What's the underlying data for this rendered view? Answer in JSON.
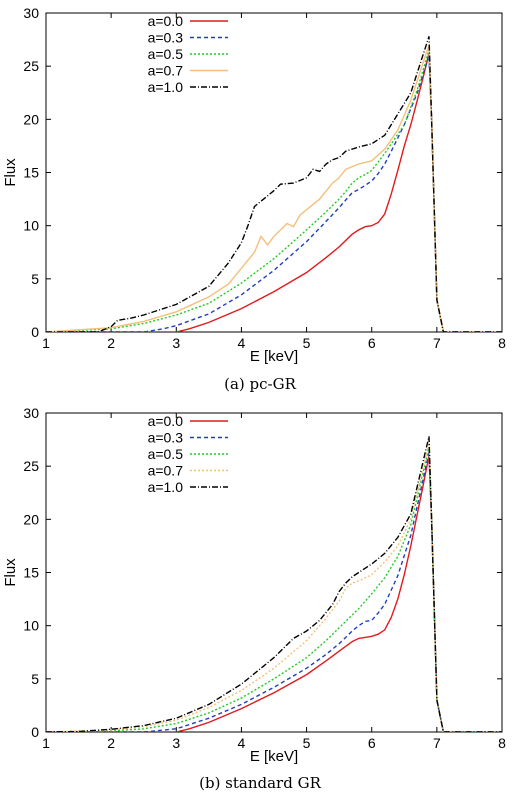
{
  "figure": {
    "captions": [
      "(a) pc-GR",
      "(b) standard GR"
    ]
  },
  "chart_data": [
    {
      "type": "line",
      "caption": "(a) pc-GR",
      "xlabel": "E [keV]",
      "ylabel": "Flux",
      "xlim": [
        1,
        8
      ],
      "ylim": [
        0,
        30
      ],
      "xticks": [
        1,
        2,
        3,
        4,
        5,
        6,
        7,
        8
      ],
      "yticks": [
        0,
        5,
        10,
        15,
        20,
        25,
        30
      ],
      "grid": false,
      "legend_position": "top-center",
      "series": [
        {
          "name": "a=0.0",
          "color": "#e31a1c",
          "dash": "solid",
          "x": [
            1.0,
            2.0,
            3.0,
            3.2,
            3.5,
            4.0,
            4.5,
            5.0,
            5.3,
            5.5,
            5.7,
            5.8,
            5.9,
            6.0,
            6.1,
            6.2,
            6.3,
            6.4,
            6.5,
            6.6,
            6.7,
            6.8,
            6.88,
            6.92,
            7.0,
            7.1,
            7.5,
            8.0
          ],
          "y": [
            0,
            0,
            0,
            0.3,
            0.9,
            2.2,
            3.8,
            5.6,
            7.0,
            8.0,
            9.2,
            9.6,
            9.9,
            10.0,
            10.3,
            11.1,
            13.0,
            15.2,
            17.5,
            19.5,
            21.8,
            24.2,
            26.2,
            20.0,
            3.0,
            0,
            0,
            0
          ]
        },
        {
          "name": "a=0.3",
          "color": "#1f3fbf",
          "dash": "4,3",
          "x": [
            1.0,
            2.5,
            2.8,
            3.0,
            3.5,
            4.0,
            4.5,
            5.0,
            5.3,
            5.5,
            5.6,
            5.7,
            5.8,
            5.9,
            6.0,
            6.1,
            6.2,
            6.3,
            6.5,
            6.7,
            6.88,
            6.92,
            7.0,
            7.1,
            7.5,
            8.0
          ],
          "y": [
            0,
            0,
            0.3,
            0.6,
            1.7,
            3.5,
            5.8,
            8.5,
            10.4,
            11.7,
            12.4,
            13.1,
            13.4,
            13.8,
            14.2,
            14.9,
            15.8,
            17.0,
            19.5,
            22.5,
            26.0,
            20.0,
            3.0,
            0,
            0,
            0
          ]
        },
        {
          "name": "a=0.5",
          "color": "#22cc22",
          "dash": "2,2",
          "x": [
            1.0,
            2.0,
            2.5,
            3.0,
            3.5,
            4.0,
            4.5,
            5.0,
            5.3,
            5.5,
            5.6,
            5.7,
            5.8,
            5.9,
            6.0,
            6.1,
            6.2,
            6.5,
            6.7,
            6.88,
            6.92,
            7.0,
            7.1,
            7.5,
            8.0
          ],
          "y": [
            0,
            0.3,
            0.8,
            1.6,
            2.7,
            4.6,
            6.9,
            9.6,
            11.3,
            12.5,
            13.2,
            14.0,
            14.5,
            14.8,
            15.2,
            16.0,
            16.8,
            19.5,
            22.8,
            26.5,
            20.0,
            3.0,
            0,
            0,
            0
          ]
        },
        {
          "name": "a=0.7",
          "color": "#f4c07a",
          "dash": "solid",
          "x": [
            1.0,
            2.0,
            2.5,
            3.0,
            3.5,
            3.8,
            4.0,
            4.2,
            4.3,
            4.4,
            4.5,
            4.7,
            4.8,
            4.9,
            5.0,
            5.2,
            5.4,
            5.5,
            5.6,
            5.8,
            6.0,
            6.2,
            6.4,
            6.6,
            6.88,
            6.92,
            7.0,
            7.1,
            7.5,
            8.0
          ],
          "y": [
            0,
            0.4,
            1.0,
            1.9,
            3.3,
            4.5,
            6.0,
            7.5,
            9.0,
            8.2,
            9.0,
            10.2,
            9.9,
            11.0,
            11.5,
            12.5,
            14.0,
            14.5,
            15.3,
            15.8,
            16.1,
            17.2,
            19.0,
            21.8,
            27.0,
            20.0,
            3.0,
            0,
            0,
            0
          ]
        },
        {
          "name": "a=1.0",
          "color": "#000000",
          "dash": "6,2,1,2",
          "x": [
            1.0,
            1.8,
            2.0,
            2.1,
            2.3,
            2.5,
            3.0,
            3.5,
            3.8,
            4.0,
            4.1,
            4.2,
            4.3,
            4.5,
            4.6,
            4.8,
            5.0,
            5.1,
            5.2,
            5.3,
            5.4,
            5.5,
            5.6,
            5.8,
            6.0,
            6.2,
            6.4,
            6.6,
            6.88,
            6.92,
            7.0,
            7.1,
            7.5,
            8.0
          ],
          "y": [
            0,
            0,
            0.5,
            1.1,
            1.3,
            1.6,
            2.6,
            4.3,
            6.5,
            8.4,
            10.0,
            11.8,
            12.3,
            13.3,
            13.9,
            14.0,
            14.5,
            15.3,
            15.1,
            15.8,
            16.2,
            16.4,
            17.0,
            17.4,
            17.7,
            18.5,
            20.5,
            22.5,
            27.8,
            20.0,
            3.0,
            0,
            0,
            0
          ]
        }
      ]
    },
    {
      "type": "line",
      "caption": "(b) standard GR",
      "xlabel": "E [keV]",
      "ylabel": "Flux",
      "xlim": [
        1,
        8
      ],
      "ylim": [
        0,
        30
      ],
      "xticks": [
        1,
        2,
        3,
        4,
        5,
        6,
        7,
        8
      ],
      "yticks": [
        0,
        5,
        10,
        15,
        20,
        25,
        30
      ],
      "grid": false,
      "legend_position": "top-center",
      "series": [
        {
          "name": "a=0.0",
          "color": "#e31a1c",
          "dash": "solid",
          "x": [
            1.0,
            3.0,
            3.2,
            3.5,
            4.0,
            4.5,
            5.0,
            5.3,
            5.5,
            5.7,
            5.8,
            5.9,
            6.0,
            6.1,
            6.2,
            6.3,
            6.4,
            6.5,
            6.6,
            6.7,
            6.8,
            6.88,
            6.92,
            7.0,
            7.1,
            7.5,
            8.0
          ],
          "y": [
            0,
            0,
            0.3,
            0.9,
            2.2,
            3.7,
            5.4,
            6.7,
            7.6,
            8.5,
            8.8,
            8.9,
            9.0,
            9.2,
            9.6,
            10.8,
            12.5,
            14.8,
            17.5,
            20.5,
            23.5,
            26.0,
            20.0,
            3.0,
            0,
            0,
            0
          ]
        },
        {
          "name": "a=0.3",
          "color": "#1f3fbf",
          "dash": "4,3",
          "x": [
            1.0,
            2.5,
            3.0,
            3.5,
            4.0,
            4.5,
            5.0,
            5.3,
            5.5,
            5.6,
            5.7,
            5.8,
            5.9,
            6.0,
            6.1,
            6.2,
            6.4,
            6.6,
            6.88,
            6.92,
            7.0,
            7.1,
            7.5,
            8.0
          ],
          "y": [
            0,
            0,
            0.3,
            1.3,
            2.6,
            4.2,
            6.0,
            7.3,
            8.3,
            8.9,
            9.5,
            10.0,
            10.4,
            10.5,
            11.2,
            12.0,
            14.7,
            18.5,
            26.3,
            20.0,
            3.0,
            0,
            0,
            0
          ]
        },
        {
          "name": "a=0.5",
          "color": "#22cc22",
          "dash": "2,2",
          "x": [
            1.0,
            2.0,
            2.5,
            3.0,
            3.5,
            4.0,
            4.5,
            5.0,
            5.3,
            5.5,
            5.7,
            5.8,
            5.9,
            6.0,
            6.2,
            6.4,
            6.6,
            6.88,
            6.92,
            7.0,
            7.1,
            7.5,
            8.0
          ],
          "y": [
            0,
            0.1,
            0.3,
            0.8,
            1.8,
            3.2,
            5.0,
            7.0,
            8.6,
            9.8,
            11.0,
            11.6,
            12.3,
            13.0,
            14.5,
            16.5,
            19.5,
            26.8,
            20.0,
            3.0,
            0,
            0,
            0
          ]
        },
        {
          "name": "a=0.7",
          "color": "#f4c07a",
          "dash": "2,2",
          "x": [
            1.0,
            2.0,
            2.5,
            3.0,
            3.5,
            4.0,
            4.5,
            5.0,
            5.3,
            5.5,
            5.6,
            5.7,
            5.8,
            6.0,
            6.2,
            6.4,
            6.6,
            6.88,
            6.92,
            7.0,
            7.1,
            7.5,
            8.0
          ],
          "y": [
            0,
            0.2,
            0.5,
            1.1,
            2.3,
            3.9,
            6.0,
            8.6,
            10.7,
            12.3,
            13.5,
            14.0,
            14.2,
            14.8,
            16.0,
            17.5,
            20.0,
            27.2,
            20.0,
            3.0,
            0,
            0,
            0
          ]
        },
        {
          "name": "a=1.0",
          "color": "#000000",
          "dash": "6,2,1,2",
          "x": [
            1.0,
            1.5,
            2.0,
            2.5,
            3.0,
            3.5,
            4.0,
            4.3,
            4.5,
            4.8,
            5.0,
            5.2,
            5.4,
            5.5,
            5.6,
            5.7,
            5.8,
            6.0,
            6.2,
            6.4,
            6.6,
            6.88,
            6.92,
            7.0,
            7.1,
            7.5,
            8.0
          ],
          "y": [
            0,
            0.05,
            0.25,
            0.6,
            1.3,
            2.6,
            4.5,
            6.0,
            7.0,
            8.8,
            9.5,
            10.5,
            12.0,
            13.2,
            14.0,
            14.6,
            15.0,
            15.8,
            16.8,
            18.3,
            20.5,
            27.8,
            20.0,
            3.0,
            0,
            0,
            0
          ]
        }
      ]
    }
  ]
}
